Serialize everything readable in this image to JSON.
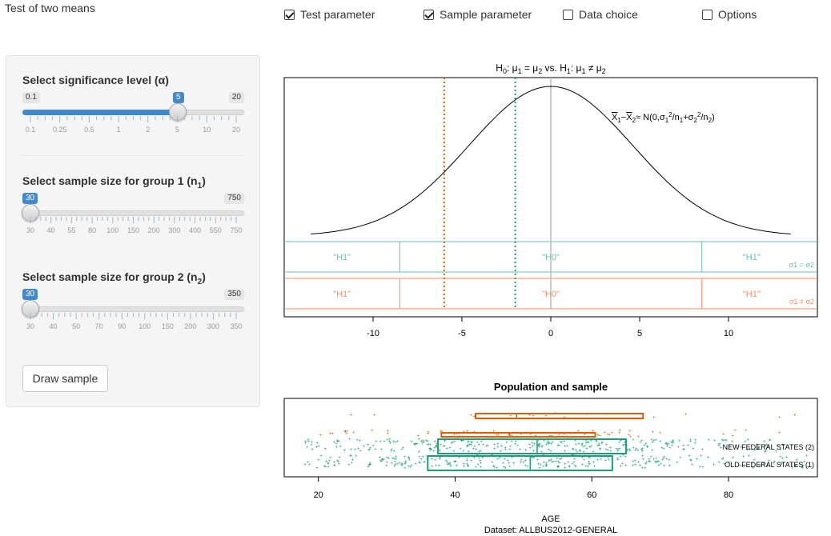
{
  "app": {
    "title": "Test of two means"
  },
  "top_options": [
    {
      "label": "Test parameter",
      "checked": true
    },
    {
      "label": "Sample parameter",
      "checked": true
    },
    {
      "label": "Data choice",
      "checked": false
    },
    {
      "label": "Options",
      "checked": false
    }
  ],
  "controls": {
    "alpha": {
      "label": "Select significance level (α)",
      "min": "0.1",
      "max": "20",
      "value": "5",
      "ticks": [
        "0.1",
        "0.25",
        "0.5",
        "1",
        "2",
        "5",
        "10",
        "20"
      ]
    },
    "n1": {
      "label_main": "Select sample size for group 1 (n",
      "label_sub": "1",
      "label_end": ")",
      "min": "30",
      "max": "750",
      "value": "30",
      "ticks": [
        "30",
        "40",
        "55",
        "80",
        "100",
        "150",
        "200",
        "300",
        "400",
        "550",
        "750"
      ]
    },
    "n2": {
      "label_main": "Select sample size for group 2 (n",
      "label_sub": "2",
      "label_end": ")",
      "min": "30",
      "max": "350",
      "value": "30",
      "ticks": [
        "30",
        "40",
        "50",
        "70",
        "90",
        "100",
        "150",
        "200",
        "300",
        "350"
      ]
    },
    "draw_button": "Draw sample"
  },
  "chart_data": [
    {
      "type": "line",
      "title": "H0: μ1 = μ2 vs. H1: μ1 ≠ μ2",
      "annotation": "X̄1 − X̄2 ≈ N(0, σ1²/n1 + σ2²/n2)",
      "xlim": [
        -15,
        15
      ],
      "xticks": [
        -10,
        -5,
        0,
        5,
        10
      ],
      "density_sd": 4.6,
      "vlines": [
        {
          "x": -6,
          "color": "#d95f02",
          "style": "dotted"
        },
        {
          "x": -2,
          "color": "#1b9e77",
          "style": "dotted"
        },
        {
          "x": 0,
          "color": "#bbbbbb",
          "style": "solid"
        }
      ],
      "bands": [
        {
          "condition": "σ1 = σ2",
          "color": "#66c2a5",
          "boundaries": [
            -8.5,
            8.5
          ],
          "labels": [
            "\"H1\"",
            "\"H0\"",
            "\"H1\""
          ]
        },
        {
          "condition": "σ1 ≠ σ2",
          "color": "#fc8d62",
          "boundaries": [
            -8.5,
            8.5
          ],
          "labels": [
            "\"H1\"",
            "\"H0\"",
            "\"H1\""
          ]
        }
      ]
    },
    {
      "type": "scatter",
      "title": "Population and sample",
      "xlabel": "AGE",
      "caption": "Dataset: ALLBUS2012-GENERAL",
      "xlim": [
        15,
        93
      ],
      "xticks": [
        20,
        40,
        60,
        80
      ],
      "series": [
        {
          "name": "NEW FEDERAL STATES (2)",
          "color": "#d95f02",
          "population_box": {
            "q1": 38,
            "median": 48,
            "q3": 60.5
          },
          "sample_box": {
            "q1": 43,
            "median": 49,
            "q3": 67.5
          }
        },
        {
          "name": "OLD FEDERAL STATES (1)",
          "color": "#1b9e77",
          "population_box": {
            "q1": 36,
            "median": 51,
            "q3": 63
          },
          "sample_box": {
            "q1": 37.5,
            "median": 52,
            "q3": 65
          }
        }
      ]
    }
  ]
}
